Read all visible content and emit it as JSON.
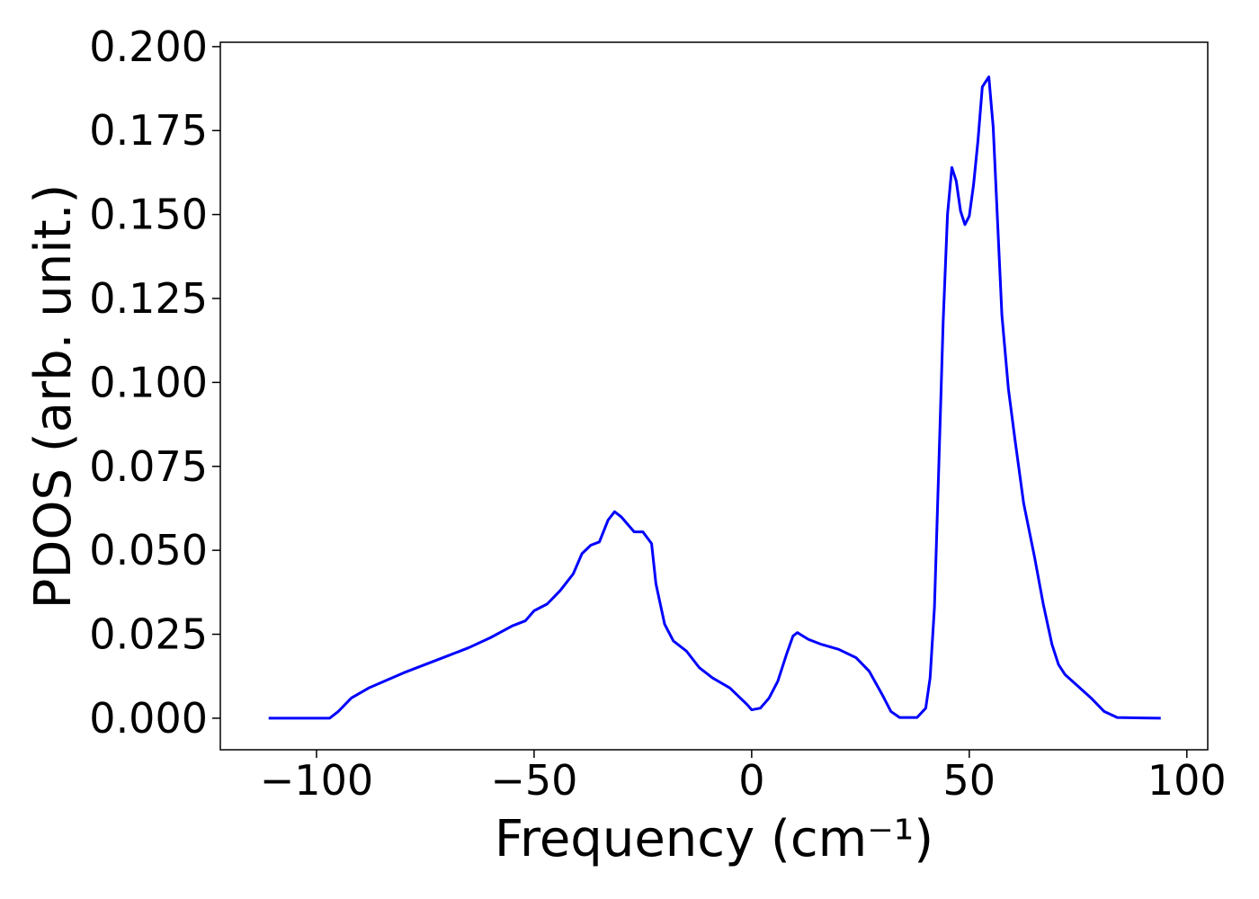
{
  "chart_data": {
    "type": "line",
    "xlabel": "Frequency (cm⁻¹)",
    "ylabel": "PDOS (arb. unit.)",
    "x": [
      -111,
      -97,
      -95,
      -92,
      -88,
      -80,
      -70,
      -65,
      -60,
      -55,
      -52,
      -50,
      -47,
      -44,
      -41,
      -39,
      -37,
      -35,
      -33,
      -31.5,
      -30,
      -27,
      -25,
      -23,
      -22,
      -20,
      -18,
      -15,
      -12,
      -9,
      -5,
      -1,
      0,
      2,
      4,
      6,
      8,
      9.5,
      10.5,
      13,
      16,
      20,
      24,
      27,
      30,
      32,
      34,
      38,
      40,
      41,
      42,
      43,
      44,
      45,
      46,
      47,
      48,
      49,
      50,
      51,
      52,
      53,
      54.5,
      55.5,
      56.5,
      57.5,
      59,
      60.5,
      62.5,
      65,
      67,
      69,
      70.5,
      72,
      75,
      78,
      81,
      84,
      94
    ],
    "series": [
      {
        "name": "PDOS",
        "color": "#0000ff",
        "values": [
          0,
          0,
          0.002,
          0.006,
          0.009,
          0.0135,
          0.0185,
          0.021,
          0.024,
          0.0275,
          0.029,
          0.032,
          0.034,
          0.038,
          0.043,
          0.049,
          0.0515,
          0.0525,
          0.059,
          0.0615,
          0.06,
          0.0555,
          0.0555,
          0.052,
          0.04,
          0.028,
          0.023,
          0.02,
          0.015,
          0.012,
          0.009,
          0.004,
          0.0025,
          0.003,
          0.006,
          0.011,
          0.019,
          0.0245,
          0.0255,
          0.0235,
          0.022,
          0.0205,
          0.018,
          0.014,
          0.007,
          0.002,
          0.0002,
          0.0002,
          0.003,
          0.012,
          0.033,
          0.075,
          0.118,
          0.15,
          0.164,
          0.16,
          0.151,
          0.147,
          0.1495,
          0.159,
          0.172,
          0.188,
          0.191,
          0.176,
          0.148,
          0.12,
          0.098,
          0.083,
          0.064,
          0.048,
          0.034,
          0.022,
          0.016,
          0.013,
          0.0095,
          0.006,
          0.002,
          0.0002,
          0
        ]
      }
    ],
    "xlim": [
      -122.1,
      104.8
    ],
    "ylim": [
      -0.0094,
      0.2013
    ],
    "xticks": [
      {
        "value": -100,
        "label": "−100"
      },
      {
        "value": -50,
        "label": "−50"
      },
      0,
      50,
      100
    ],
    "yticks": [
      {
        "value": 0,
        "label": "0.000"
      },
      {
        "value": 0.025,
        "label": "0.025"
      },
      {
        "value": 0.05,
        "label": "0.050"
      },
      {
        "value": 0.075,
        "label": "0.075"
      },
      {
        "value": 0.1,
        "label": "0.100"
      },
      {
        "value": 0.125,
        "label": "0.125"
      },
      {
        "value": 0.15,
        "label": "0.150"
      },
      {
        "value": 0.175,
        "label": "0.175"
      },
      {
        "value": 0.2,
        "label": "0.200"
      }
    ]
  }
}
